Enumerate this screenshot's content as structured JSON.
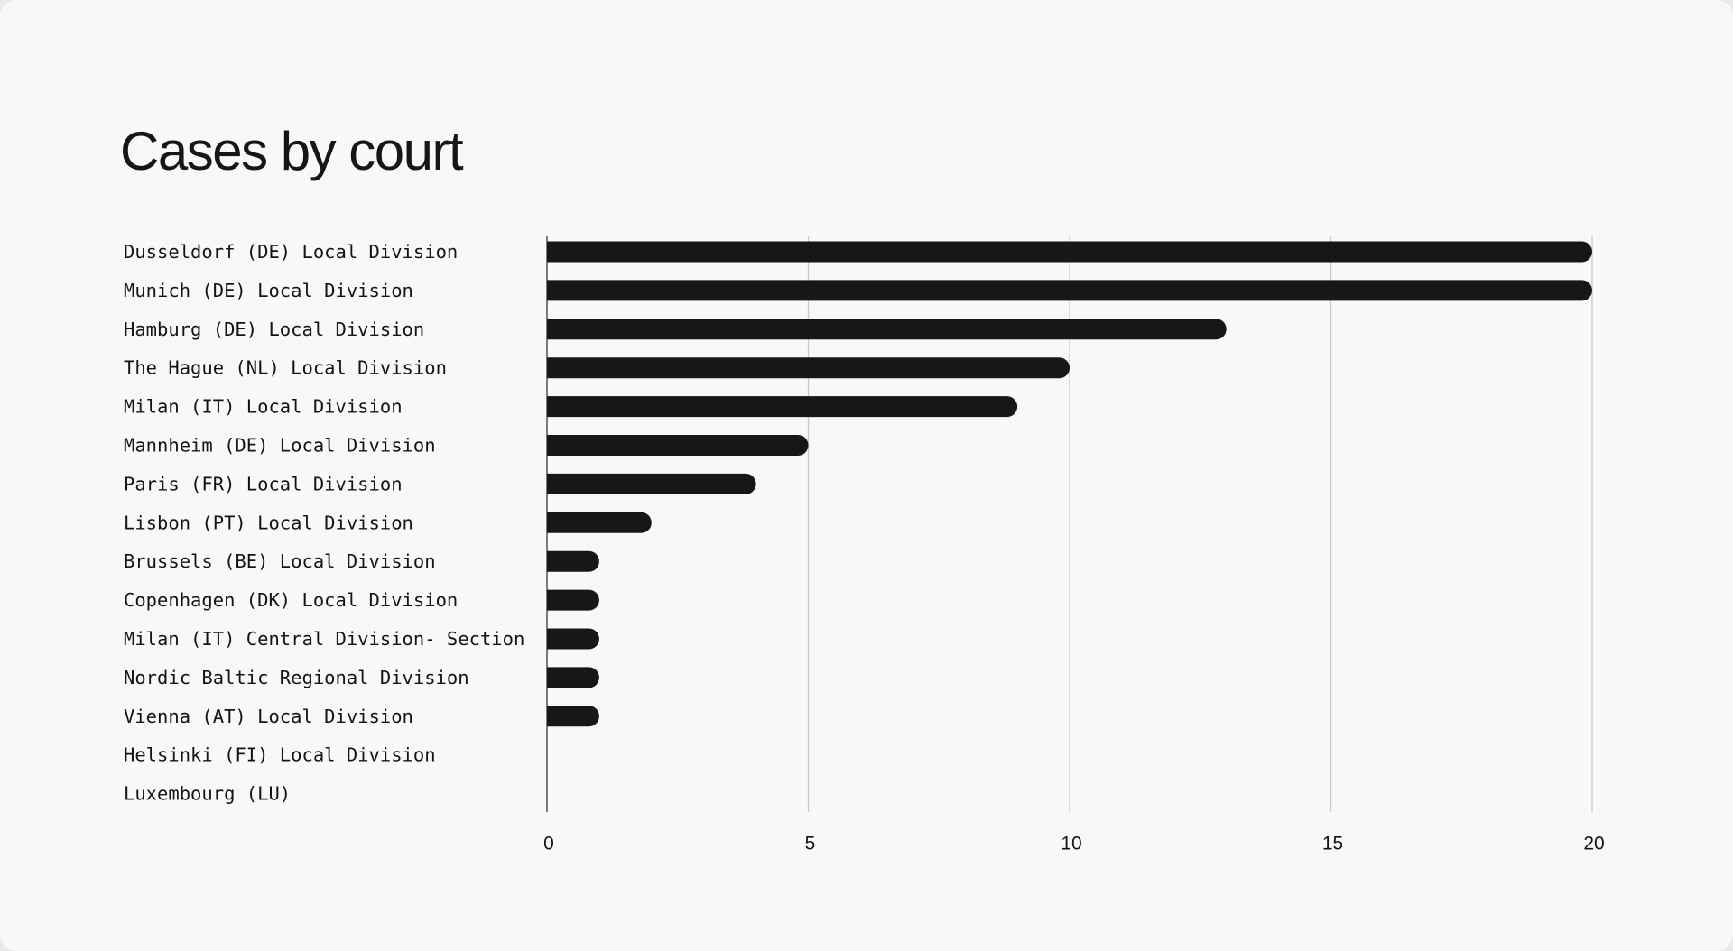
{
  "chart_data": {
    "type": "bar",
    "orientation": "horizontal",
    "title": "Cases by court",
    "categories": [
      "Dusseldorf (DE) Local Division",
      "Munich (DE) Local Division",
      "Hamburg (DE) Local Division",
      "The Hague (NL) Local Division",
      "Milan (IT) Local Division",
      "Mannheim (DE) Local Division",
      "Paris (FR) Local Division",
      "Lisbon (PT) Local Division",
      "Brussels (BE) Local Division",
      "Copenhagen (DK) Local Division",
      "Milan (IT) Central Division- Section",
      "Nordic Baltic Regional Division",
      "Vienna (AT) Local Division",
      "Helsinki (FI) Local Division",
      "Luxembourg (LU)"
    ],
    "values": [
      20,
      20,
      13,
      10,
      9,
      5,
      4,
      2,
      1,
      1,
      1,
      1,
      1,
      0,
      0
    ],
    "xlim": [
      0,
      20
    ],
    "xticks": [
      "0",
      "5",
      "10",
      "15",
      "20"
    ],
    "grid": true,
    "bar_color": "#171717",
    "grid_color": "#c9c9c9"
  }
}
